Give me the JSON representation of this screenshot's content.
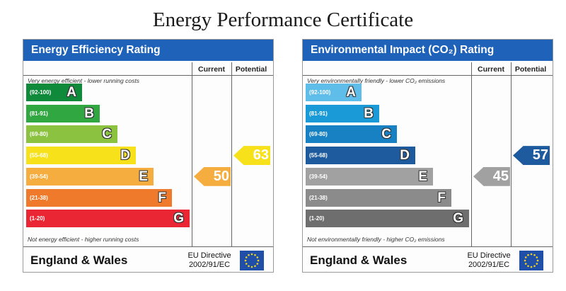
{
  "title": "Energy Performance Certificate",
  "colors": {
    "header_blue": "#1f62b9",
    "energy_bands": [
      "#0f8a3b",
      "#31a742",
      "#8bc23f",
      "#f6e11b",
      "#f6ad3f",
      "#ef7a2c",
      "#ea2634"
    ],
    "environmental_bands": [
      "#5fbde9",
      "#1a9bd8",
      "#1781c3",
      "#1e5b9e",
      "#a1a1a1",
      "#8b8b8b",
      "#6e6e6e"
    ]
  },
  "chart_data": [
    {
      "type": "bar",
      "title": "Energy Efficiency Rating",
      "columns": [
        "Current",
        "Potential"
      ],
      "top_note": "Very energy efficient - lower running costs",
      "bottom_note": "Not energy efficient - higher running costs",
      "bands": [
        {
          "letter": "A",
          "range": "(92-100)"
        },
        {
          "letter": "B",
          "range": "(81-91)"
        },
        {
          "letter": "C",
          "range": "(69-80)"
        },
        {
          "letter": "D",
          "range": "(55-68)"
        },
        {
          "letter": "E",
          "range": "(39-54)"
        },
        {
          "letter": "F",
          "range": "(21-38)"
        },
        {
          "letter": "G",
          "range": "(1-20)"
        }
      ],
      "current": 50,
      "potential": 63,
      "current_color": "#f6ad3f",
      "potential_color": "#f6e11b",
      "footer_region": "England & Wales",
      "footer_directive": [
        "EU Directive",
        "2002/91/EC"
      ]
    },
    {
      "type": "bar",
      "title": "Environmental Impact (CO₂) Rating",
      "columns": [
        "Current",
        "Potential"
      ],
      "top_note": "Very environmentally friendly - lower CO₂ emissions",
      "bottom_note": "Not environmentally friendly - higher CO₂ emissions",
      "bands": [
        {
          "letter": "A",
          "range": "(92-100)"
        },
        {
          "letter": "B",
          "range": "(81-91)"
        },
        {
          "letter": "C",
          "range": "(69-80)"
        },
        {
          "letter": "D",
          "range": "(55-68)"
        },
        {
          "letter": "E",
          "range": "(39-54)"
        },
        {
          "letter": "F",
          "range": "(21-38)"
        },
        {
          "letter": "G",
          "range": "(1-20)"
        }
      ],
      "current": 45,
      "potential": 57,
      "current_color": "#a1a1a1",
      "potential_color": "#1e5b9e",
      "footer_region": "England & Wales",
      "footer_directive": [
        "EU Directive",
        "2002/91/EC"
      ]
    }
  ]
}
